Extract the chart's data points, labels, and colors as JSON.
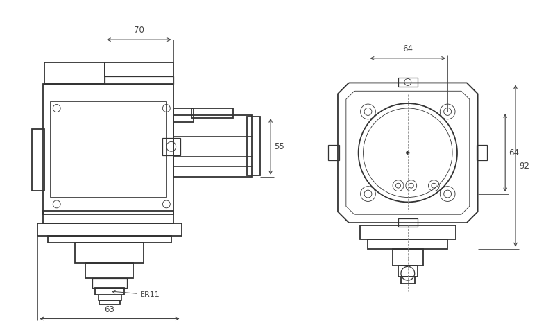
{
  "bg_color": "#ffffff",
  "line_color": "#333333",
  "dim_color": "#444444",
  "thin_lw": 0.6,
  "thick_lw": 1.3,
  "mid_lw": 0.9,
  "fig_width": 8.0,
  "fig_height": 4.83,
  "dpi": 100
}
